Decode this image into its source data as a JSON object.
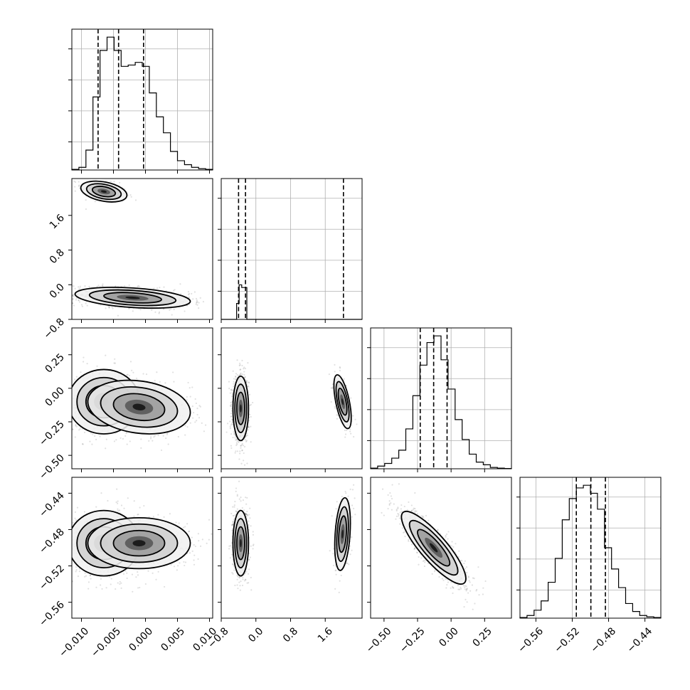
{
  "chart_data": {
    "type": "corner",
    "params": [
      {
        "range": [
          -0.0115,
          0.0105
        ],
        "ticks": [
          -0.01,
          -0.005,
          0.0,
          0.005,
          0.01
        ],
        "tick_labels": [
          "−0.010",
          "−0.005",
          "0.000",
          "0.005",
          "0.010"
        ],
        "hist_ylim": [
          0,
          1
        ],
        "hist": [
          0.005,
          0.02,
          0.15,
          0.55,
          0.9,
          1.0,
          0.9,
          0.78,
          0.79,
          0.81,
          0.78,
          0.58,
          0.4,
          0.28,
          0.14,
          0.07,
          0.04,
          0.02,
          0.01,
          0.005
        ],
        "quantiles": [
          -0.0074,
          -0.0042,
          -0.0003
        ]
      },
      {
        "range": [
          -0.8,
          2.45
        ],
        "ticks": [
          -0.8,
          0.0,
          0.8,
          1.6
        ],
        "tick_labels": [
          "−0.8",
          "0.0",
          "0.8",
          "1.6"
        ],
        "hist_ylim": [
          0,
          1
        ],
        "hist": [
          0.0,
          0.0,
          0.0,
          0.0,
          0.0,
          0.0,
          0.12,
          0.26,
          0.24,
          0.24,
          0.0,
          0.0,
          0.0,
          0.0,
          0.0,
          0.0,
          0.0,
          0.0,
          0.0,
          0.0,
          0.0,
          0.0,
          0.0,
          0.0,
          0.0,
          0.0,
          0.0,
          0.0,
          0.0,
          0.0,
          0.0,
          0.0,
          0.0,
          0.0,
          0.0,
          0.0,
          0.0,
          0.0,
          0.0,
          0.0,
          0.0,
          0.0,
          0.0,
          0.0,
          0.0,
          0.0,
          0.0,
          0.0,
          0.0,
          0.0,
          0.0,
          0.0,
          0.0,
          0.0,
          0.0
        ],
        "quantiles": [
          -0.4,
          -0.24,
          2.02
        ]
      },
      {
        "range": [
          -0.6,
          0.45
        ],
        "ticks": [
          -0.5,
          -0.25,
          0.0,
          0.25
        ],
        "tick_labels": [
          "−0.50",
          "−0.25",
          "0.00",
          "0.25"
        ],
        "hist_ylim": [
          0,
          1
        ],
        "hist": [
          0.005,
          0.02,
          0.04,
          0.08,
          0.14,
          0.3,
          0.55,
          0.78,
          0.95,
          1.0,
          0.82,
          0.6,
          0.37,
          0.22,
          0.11,
          0.05,
          0.03,
          0.01,
          0.005,
          0.002
        ],
        "quantiles": [
          -0.23,
          -0.13,
          -0.03
        ]
      },
      {
        "range": [
          -0.5775,
          -0.4225
        ],
        "ticks": [
          -0.56,
          -0.52,
          -0.48,
          -0.44
        ],
        "tick_labels": [
          "−0.56",
          "−0.52",
          "−0.48",
          "−0.44"
        ],
        "hist_ylim": [
          0,
          1
        ],
        "hist": [
          0.005,
          0.02,
          0.06,
          0.13,
          0.27,
          0.45,
          0.74,
          0.9,
          0.98,
          1.0,
          0.94,
          0.82,
          0.53,
          0.37,
          0.23,
          0.11,
          0.05,
          0.02,
          0.01,
          0.005
        ],
        "quantiles": [
          -0.5155,
          -0.4995,
          -0.4835
        ]
      }
    ],
    "hist2d": [
      {
        "row": 1,
        "col": 0,
        "blobs": [
          {
            "center": [
              -0.0065,
              2.15
            ],
            "sd": [
              0.0018,
              0.12
            ],
            "corr": -0.35,
            "weight": 0.22
          },
          {
            "center": [
              -0.002,
              -0.3
            ],
            "sd": [
              0.0045,
              0.12
            ],
            "corr": -0.35,
            "weight": 0.78
          }
        ]
      },
      {
        "row": 2,
        "col": 0,
        "blobs": [
          {
            "center": [
              -0.0065,
              -0.1
            ],
            "sd": [
              0.0028,
              0.12
            ],
            "corr": 0.0,
            "weight": 0.5
          },
          {
            "center": [
              -0.001,
              -0.14
            ],
            "sd": [
              0.004,
              0.1
            ],
            "corr": -0.2,
            "weight": 0.5
          }
        ]
      },
      {
        "row": 2,
        "col": 1,
        "blobs": [
          {
            "center": [
              -0.35,
              -0.15
            ],
            "sd": [
              0.09,
              0.12
            ],
            "corr": 0.0,
            "weight": 0.75
          },
          {
            "center": [
              2.0,
              -0.1
            ],
            "sd": [
              0.1,
              0.1
            ],
            "corr": -0.6,
            "weight": 0.25
          }
        ]
      },
      {
        "row": 3,
        "col": 0,
        "blobs": [
          {
            "center": [
              -0.0065,
              -0.495
            ],
            "sd": [
              0.0028,
              0.018
            ],
            "corr": 0.0,
            "weight": 0.5
          },
          {
            "center": [
              -0.001,
              -0.495
            ],
            "sd": [
              0.004,
              0.014
            ],
            "corr": 0.0,
            "weight": 0.5
          }
        ]
      },
      {
        "row": 3,
        "col": 1,
        "blobs": [
          {
            "center": [
              -0.35,
              -0.495
            ],
            "sd": [
              0.09,
              0.018
            ],
            "corr": 0.0,
            "weight": 0.75
          },
          {
            "center": [
              2.0,
              -0.485
            ],
            "sd": [
              0.09,
              0.02
            ],
            "corr": 0.3,
            "weight": 0.25
          }
        ]
      },
      {
        "row": 3,
        "col": 2,
        "blobs": [
          {
            "center": [
              -0.13,
              -0.5
            ],
            "sd": [
              0.12,
              0.02
            ],
            "corr": -0.85,
            "weight": 1.0
          }
        ]
      }
    ]
  }
}
